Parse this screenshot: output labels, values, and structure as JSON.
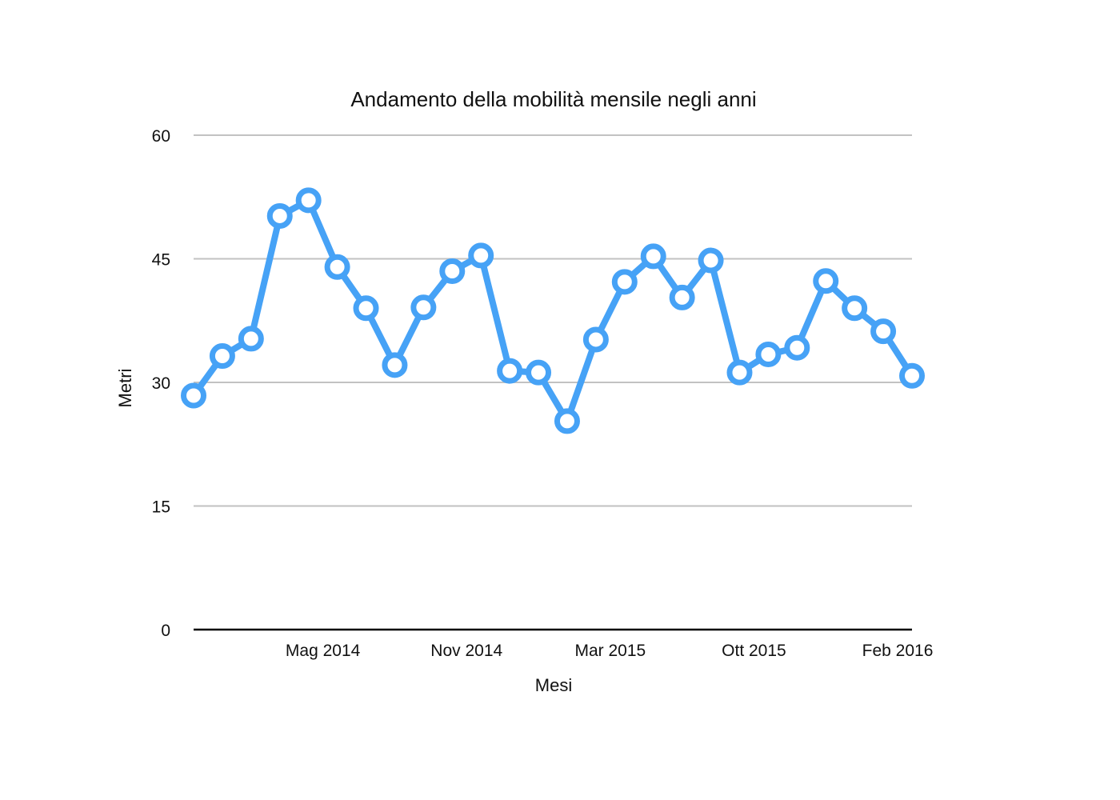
{
  "chart_data": {
    "type": "line",
    "title": "Andamento della mobilità mensile negli anni",
    "xlabel": "Mesi",
    "ylabel": "Metri",
    "ylim": [
      0,
      60
    ],
    "yticks": [
      "0",
      "15",
      "30",
      "45",
      "60"
    ],
    "grid": true,
    "xtick_labels": [
      {
        "index": 5,
        "label": "Mag 2014"
      },
      {
        "index": 10,
        "label": "Nov 2014"
      },
      {
        "index": 15,
        "label": "Mar 2015"
      },
      {
        "index": 20,
        "label": "Ott 2015"
      },
      {
        "index": 25,
        "label": "Feb 2016"
      }
    ],
    "series": [
      {
        "color": "#46a2f6",
        "values": [
          28.4,
          33.2,
          35.3,
          50.2,
          52.1,
          44.0,
          39.0,
          32.1,
          39.1,
          43.5,
          45.4,
          31.4,
          31.2,
          25.3,
          35.2,
          42.2,
          45.3,
          40.3,
          44.8,
          31.2,
          33.4,
          34.2,
          42.3,
          39.0,
          36.2,
          30.8
        ]
      }
    ]
  }
}
